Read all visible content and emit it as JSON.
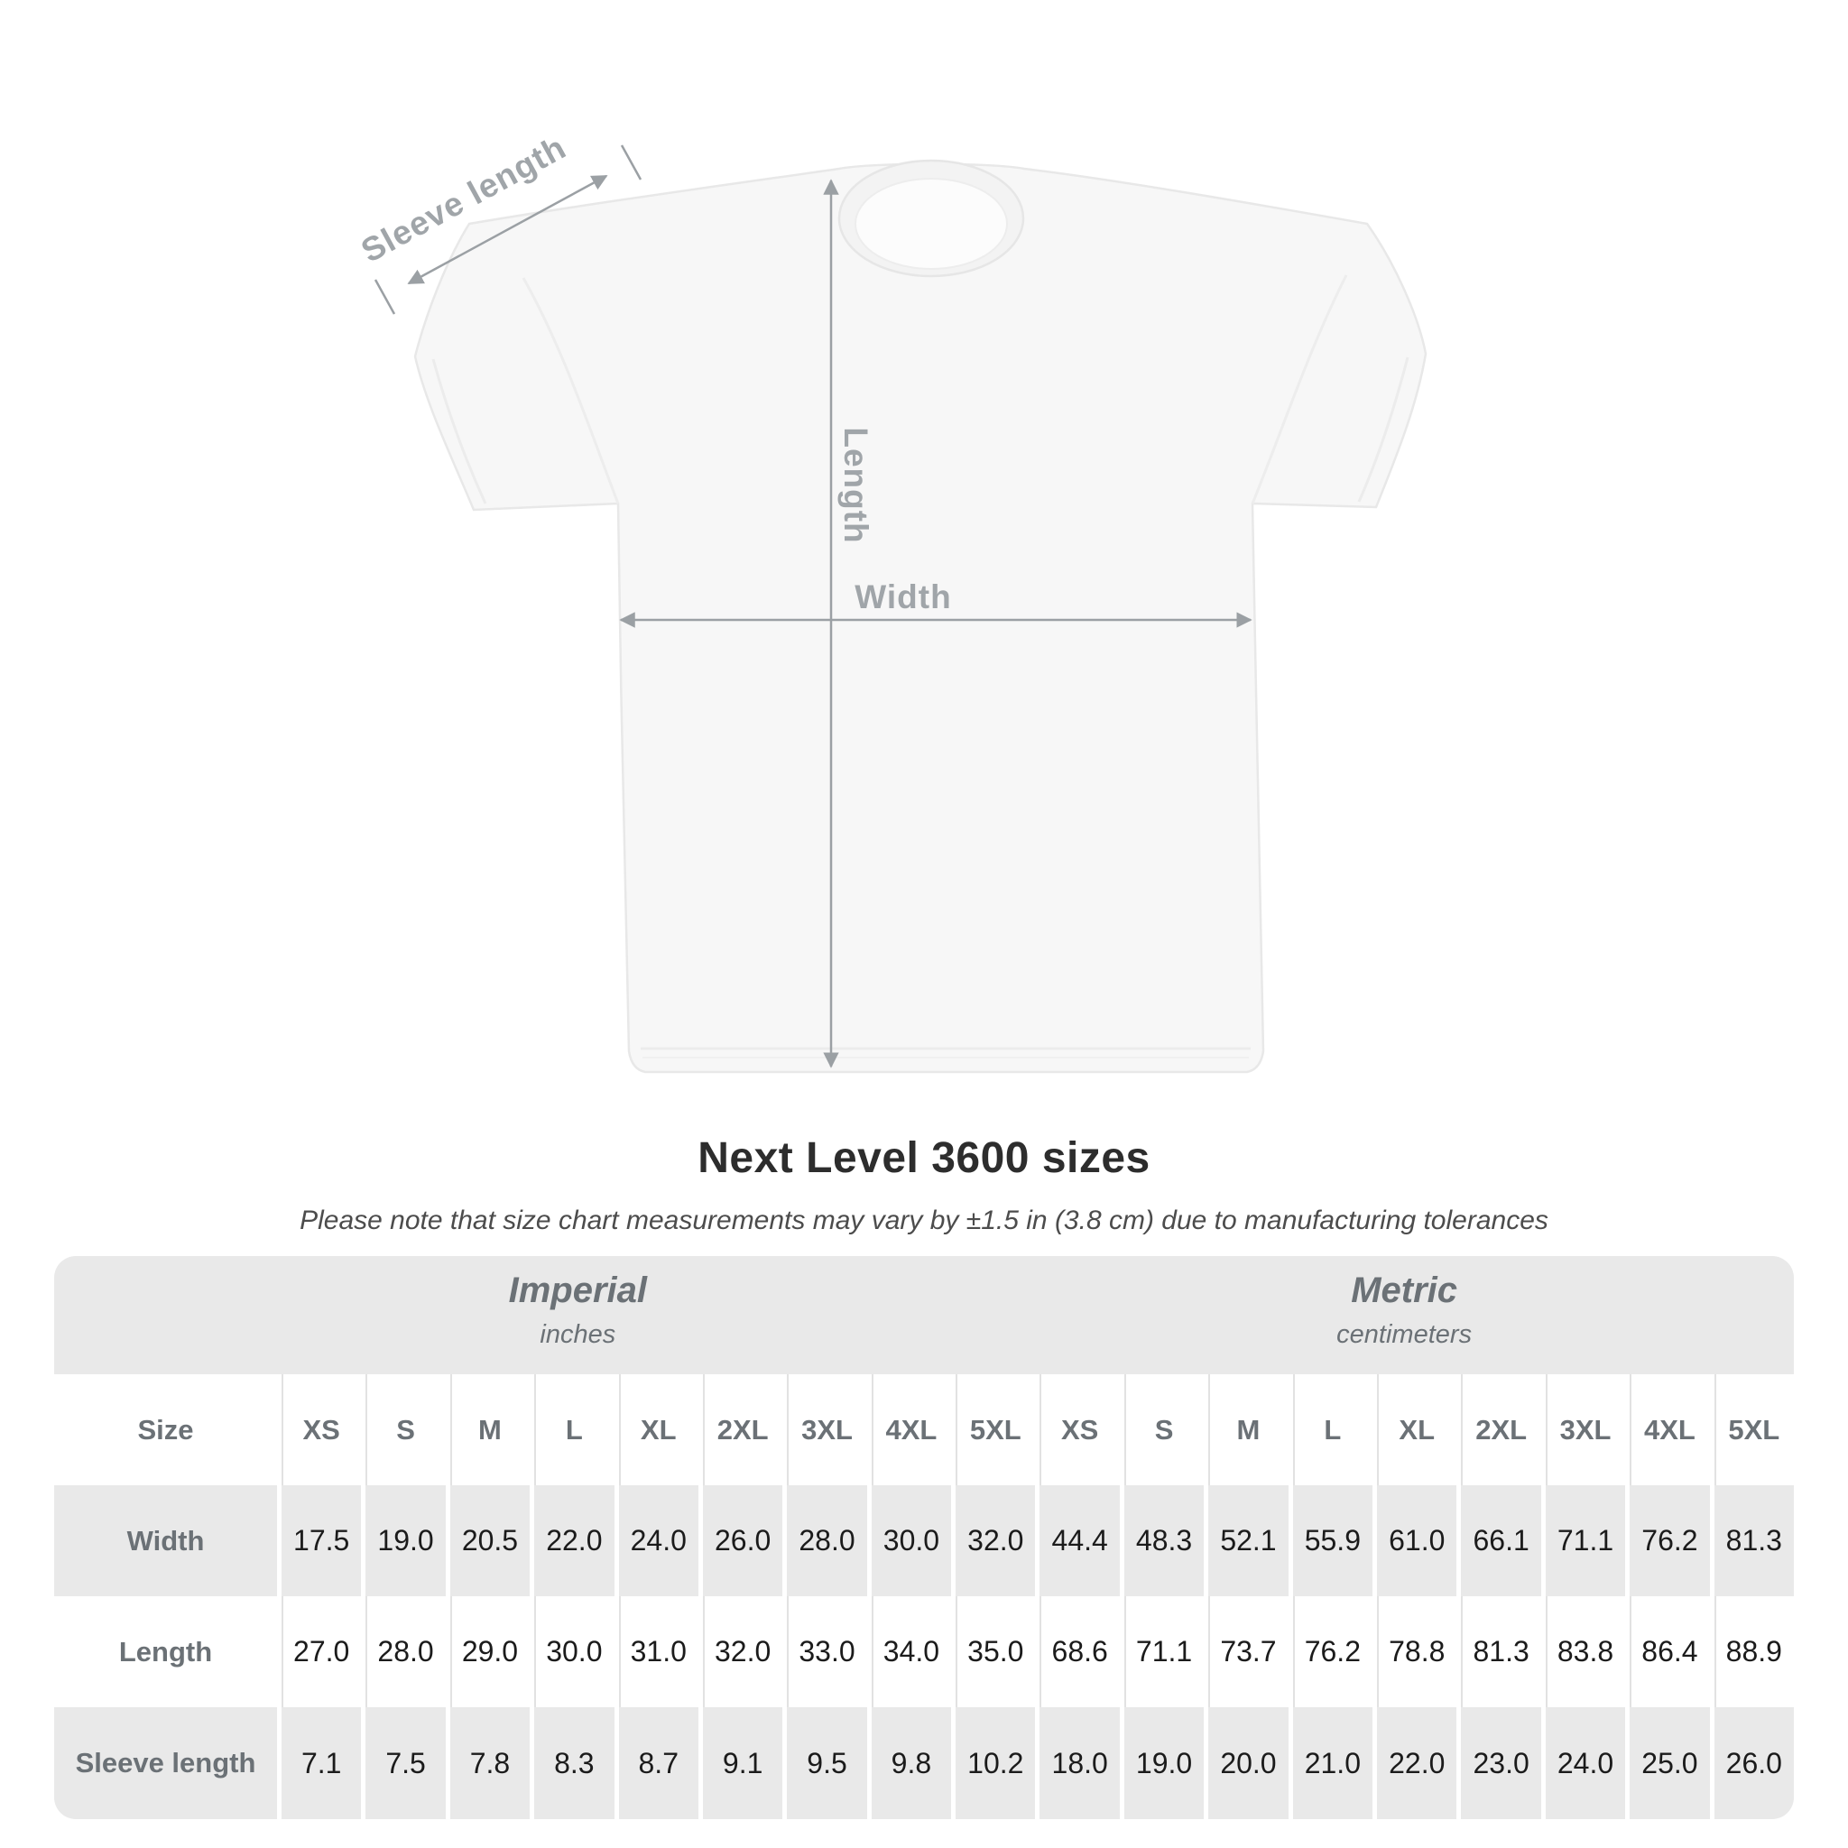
{
  "diagram": {
    "sleeve_label": "Sleeve length",
    "length_label": "Length",
    "width_label": "Width"
  },
  "heading": {
    "title": "Next Level 3600 sizes",
    "subtitle": "Please note that size chart measurements may vary by ±1.5 in (3.8 cm) due to manufacturing tolerances"
  },
  "chart_data": {
    "type": "table",
    "title": "Next Level 3600 sizes",
    "unit_groups": [
      {
        "label": "Imperial",
        "sublabel": "inches"
      },
      {
        "label": "Metric",
        "sublabel": "centimeters"
      }
    ],
    "size_column_header": "Size",
    "sizes": [
      "XS",
      "S",
      "M",
      "L",
      "XL",
      "2XL",
      "3XL",
      "4XL",
      "5XL"
    ],
    "rows": [
      {
        "label": "Width",
        "imperial": [
          "17.5",
          "19.0",
          "20.5",
          "22.0",
          "24.0",
          "26.0",
          "28.0",
          "30.0",
          "32.0"
        ],
        "metric": [
          "44.4",
          "48.3",
          "52.1",
          "55.9",
          "61.0",
          "66.1",
          "71.1",
          "76.2",
          "81.3"
        ]
      },
      {
        "label": "Length",
        "imperial": [
          "27.0",
          "28.0",
          "29.0",
          "30.0",
          "31.0",
          "32.0",
          "33.0",
          "34.0",
          "35.0"
        ],
        "metric": [
          "68.6",
          "71.1",
          "73.7",
          "76.2",
          "78.8",
          "81.3",
          "83.8",
          "86.4",
          "88.9"
        ]
      },
      {
        "label": "Sleeve length",
        "imperial": [
          "7.1",
          "7.5",
          "7.8",
          "8.3",
          "8.7",
          "9.1",
          "9.5",
          "9.8",
          "10.2"
        ],
        "metric": [
          "18.0",
          "19.0",
          "20.0",
          "21.0",
          "22.0",
          "23.0",
          "24.0",
          "25.0",
          "26.0"
        ]
      }
    ]
  },
  "colors": {
    "band_gray": "#e9e9e9",
    "row_gray": "#e9e9e9",
    "header_text": "#6b7176",
    "value_text": "#1b1b1b",
    "title_text": "#2d2d2d",
    "subtitle_text": "#4c4c4c",
    "annotation_gray": "#9ba0a4",
    "shirt_fill": "#f7f7f7"
  }
}
